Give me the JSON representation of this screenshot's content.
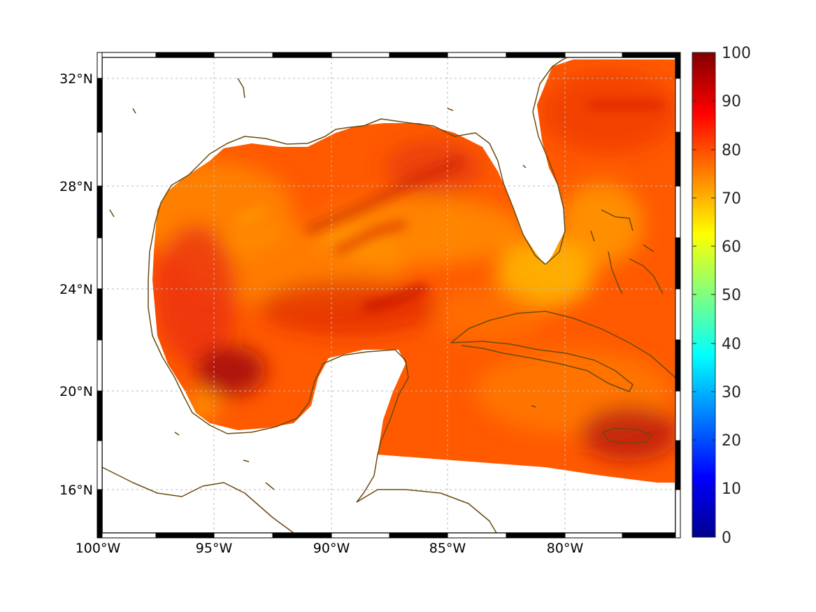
{
  "map": {
    "lon_labels": [
      "100°W",
      "95°W",
      "90°W",
      "85°W",
      "80°W"
    ],
    "lat_labels": [
      "32°N",
      "28°N",
      "24°N",
      "20°N",
      "16°N"
    ],
    "lon_range": [
      -100,
      -75
    ],
    "lat_range": [
      15,
      33
    ],
    "colorbar": {
      "min": 0,
      "max": 100,
      "tick_labels": [
        "100",
        "90",
        "80",
        "70",
        "60",
        "50",
        "40",
        "30",
        "20",
        "10",
        "0"
      ],
      "colormap": "jet"
    },
    "colors": {
      "coastline": "#6b4a0f",
      "field_orange": "#ff6a00",
      "field_red": "#e8200a",
      "field_darkred": "#b80f0a",
      "field_yellow": "#ffb300",
      "grid": "#bbbbbb"
    },
    "landmasses": [
      "coastline-gulf-us",
      "coastline-florida",
      "coastline-mexico",
      "coastline-yucatan",
      "coastline-cuba",
      "coastline-bahamas",
      "coastline-jamaica",
      "coastline-central-america"
    ]
  }
}
